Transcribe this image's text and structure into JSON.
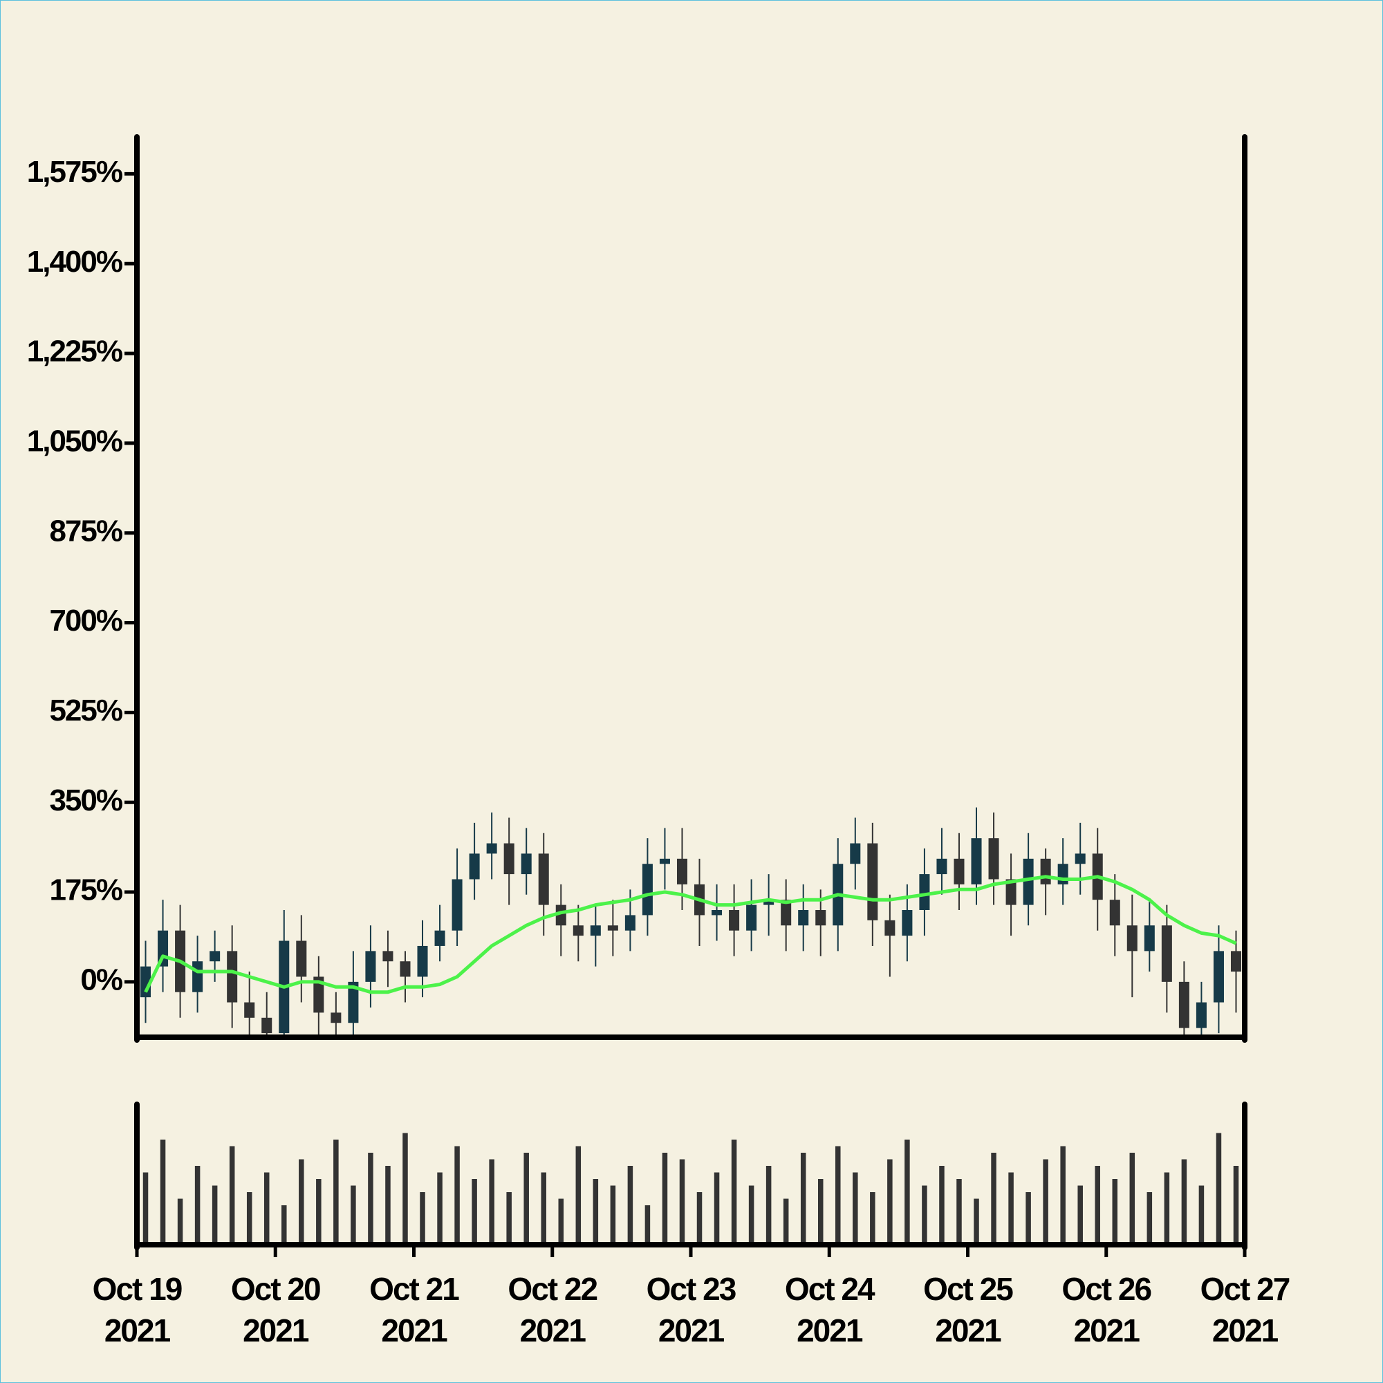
{
  "chart_data": {
    "type": "candlestick",
    "xlim": [
      "2021-10-19",
      "2021-10-27"
    ],
    "xticks": [
      {
        "value": "2021-10-19",
        "label": [
          "Oct 19",
          "2021"
        ]
      },
      {
        "value": "2021-10-20",
        "label": [
          "Oct 20",
          "2021"
        ]
      },
      {
        "value": "2021-10-21",
        "label": [
          "Oct 21",
          "2021"
        ]
      },
      {
        "value": "2021-10-22",
        "label": [
          "Oct 22",
          "2021"
        ]
      },
      {
        "value": "2021-10-23",
        "label": [
          "Oct 23",
          "2021"
        ]
      },
      {
        "value": "2021-10-24",
        "label": [
          "Oct 24",
          "2021"
        ]
      },
      {
        "value": "2021-10-25",
        "label": [
          "Oct 25",
          "2021"
        ]
      },
      {
        "value": "2021-10-26",
        "label": [
          "Oct 26",
          "2021"
        ]
      },
      {
        "value": "2021-10-27",
        "label": [
          "Oct 27",
          "2021"
        ]
      }
    ],
    "ylim": [
      -108,
      1647
    ],
    "yticks": [
      {
        "value": 0,
        "label": "0%"
      },
      {
        "value": 175,
        "label": "175%"
      },
      {
        "value": 350,
        "label": "350%"
      },
      {
        "value": 525,
        "label": "525%"
      },
      {
        "value": 700,
        "label": "700%"
      },
      {
        "value": 875,
        "label": "875%"
      },
      {
        "value": 1050,
        "label": "1,050%"
      },
      {
        "value": 1225,
        "label": "1,225%"
      },
      {
        "value": 1400,
        "label": "1,400%"
      },
      {
        "value": 1575,
        "label": "1,575%"
      }
    ],
    "up_color": "#163a48",
    "down_color": "#333333",
    "open": [
      -30,
      30,
      100,
      -20,
      40,
      60,
      -40,
      -70,
      -100,
      80,
      10,
      -60,
      -80,
      0,
      60,
      40,
      10,
      70,
      100,
      200,
      250,
      270,
      210,
      250,
      150,
      110,
      90,
      110,
      100,
      130,
      230,
      240,
      190,
      130,
      140,
      100,
      150,
      160,
      110,
      140,
      110,
      230,
      270,
      120,
      90,
      140,
      210,
      240,
      190,
      280,
      200,
      150,
      240,
      190,
      230,
      250,
      160,
      110,
      60,
      110,
      0,
      -90,
      -40,
      60
    ],
    "close": [
      30,
      100,
      -20,
      40,
      60,
      -40,
      -70,
      -100,
      80,
      10,
      -60,
      -80,
      0,
      60,
      40,
      10,
      70,
      100,
      200,
      250,
      270,
      210,
      250,
      150,
      110,
      90,
      110,
      100,
      130,
      230,
      240,
      190,
      130,
      140,
      100,
      150,
      160,
      110,
      140,
      110,
      230,
      270,
      120,
      90,
      140,
      210,
      240,
      190,
      280,
      200,
      150,
      240,
      190,
      230,
      250,
      160,
      110,
      60,
      110,
      0,
      -90,
      -40,
      60,
      20
    ],
    "high": [
      80,
      160,
      150,
      90,
      100,
      110,
      20,
      -20,
      140,
      130,
      50,
      -20,
      60,
      110,
      100,
      60,
      120,
      150,
      260,
      310,
      330,
      320,
      300,
      290,
      190,
      150,
      150,
      160,
      180,
      280,
      300,
      300,
      240,
      190,
      190,
      200,
      210,
      200,
      190,
      180,
      280,
      320,
      310,
      170,
      190,
      260,
      300,
      290,
      340,
      330,
      250,
      290,
      260,
      280,
      310,
      300,
      210,
      170,
      160,
      150,
      40,
      0,
      110,
      100
    ],
    "low": [
      -80,
      -20,
      -70,
      -60,
      0,
      -90,
      -120,
      -150,
      -140,
      -40,
      -110,
      -140,
      -130,
      -50,
      -10,
      -40,
      -30,
      40,
      70,
      160,
      200,
      150,
      170,
      90,
      50,
      40,
      30,
      50,
      60,
      90,
      180,
      140,
      70,
      80,
      50,
      60,
      90,
      60,
      60,
      50,
      60,
      180,
      70,
      10,
      40,
      90,
      170,
      140,
      150,
      150,
      90,
      110,
      130,
      150,
      170,
      100,
      50,
      -30,
      20,
      -60,
      -150,
      -150,
      -100,
      -60
    ],
    "moving_average": {
      "color": "#4cf24a",
      "values": [
        -20,
        50,
        40,
        20,
        20,
        20,
        10,
        0,
        -10,
        0,
        0,
        -10,
        -10,
        -20,
        -20,
        -10,
        -10,
        -5,
        10,
        40,
        70,
        90,
        110,
        125,
        135,
        140,
        150,
        155,
        160,
        170,
        175,
        170,
        160,
        150,
        150,
        155,
        160,
        155,
        160,
        160,
        170,
        165,
        160,
        160,
        165,
        170,
        175,
        180,
        180,
        190,
        195,
        200,
        205,
        200,
        200,
        205,
        195,
        180,
        160,
        130,
        110,
        95,
        90,
        75
      ]
    },
    "volume": {
      "color": "#333333",
      "ylim": [
        0,
        100
      ],
      "values": [
        55,
        80,
        35,
        60,
        45,
        75,
        40,
        55,
        30,
        65,
        50,
        80,
        45,
        70,
        60,
        85,
        40,
        55,
        75,
        50,
        65,
        40,
        70,
        55,
        35,
        75,
        50,
        45,
        60,
        30,
        70,
        65,
        40,
        55,
        80,
        45,
        60,
        35,
        70,
        50,
        75,
        55,
        40,
        65,
        80,
        45,
        60,
        50,
        35,
        70,
        55,
        40,
        65,
        75,
        45,
        60,
        50,
        70,
        40,
        55,
        65,
        45,
        85,
        60
      ]
    }
  }
}
